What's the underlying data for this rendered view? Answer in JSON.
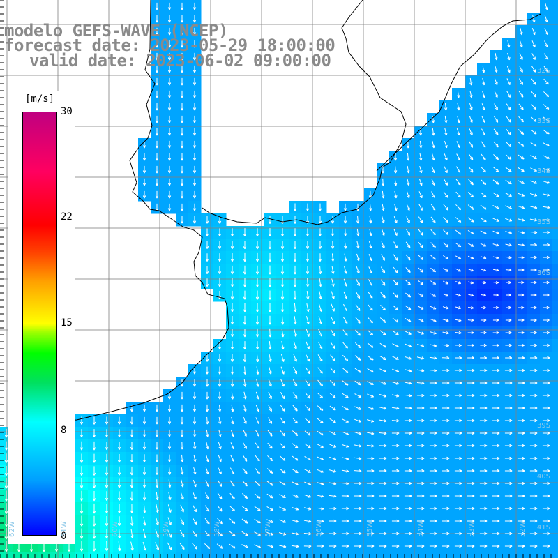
{
  "title": {
    "line1": "modelo GEFS-WAVE (NCEP)",
    "line2": "forecast date: 2023-05-29 18:00:00",
    "line3": "valid date: 2023-06-02 09:00:00"
  },
  "colorbar": {
    "unit": "[m/s]",
    "ticks": [
      "30",
      "22",
      "15",
      "8",
      "0"
    ],
    "range": [
      0,
      30
    ]
  },
  "lat_labels": [
    "32S",
    "33S",
    "34S",
    "35S",
    "36S",
    "39S",
    "40S",
    "41S"
  ],
  "lon_labels": [
    "62W",
    "61W",
    "60W",
    "59W",
    "58W",
    "57W",
    "56W",
    "55W",
    "54W",
    "53W",
    "52W"
  ],
  "colors": {
    "land": "#ffffff",
    "coast": "#000000",
    "grid": "#808080",
    "arrows": "#ffffff",
    "title": "#8a8a8a"
  },
  "wind_field": {
    "variable": "wind speed and direction",
    "units": "m/s",
    "strongest_region": "southwest (green, ~10-12 m/s)",
    "weakest_region": "east around 36S (deep blue, ~1-3 m/s)",
    "west_direction": "southward",
    "southeast_direction": "eastward"
  }
}
